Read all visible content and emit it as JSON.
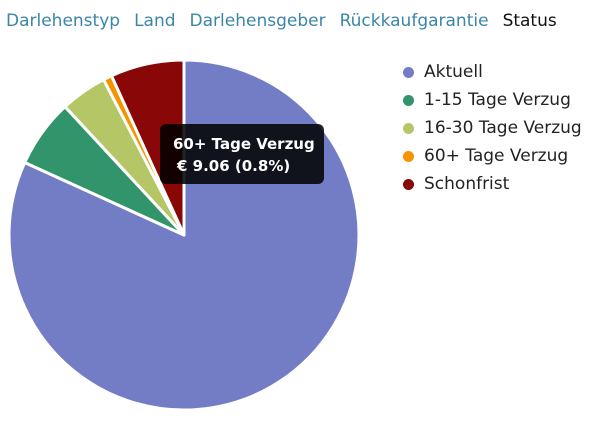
{
  "tabs": [
    {
      "label": "Darlehenstyp",
      "active": false
    },
    {
      "label": "Land",
      "active": false
    },
    {
      "label": "Darlehensgeber",
      "active": false
    },
    {
      "label": "Rückkaufgarantie",
      "active": false
    },
    {
      "label": "Status",
      "active": true
    }
  ],
  "chart_data": {
    "type": "pie",
    "slices": [
      {
        "label": "Aktuell",
        "percent": 81.8,
        "color": "#737dc6"
      },
      {
        "label": "1-15 Tage Verzug",
        "percent": 6.3,
        "color": "#31946a"
      },
      {
        "label": "16-30 Tage Verzug",
        "percent": 4.3,
        "color": "#b5c667"
      },
      {
        "label": "60+ Tage Verzug",
        "percent": 0.8,
        "color": "#f59300"
      },
      {
        "label": "Schonfrist",
        "percent": 6.8,
        "color": "#8a0707"
      }
    ],
    "legend_position": "right"
  },
  "tooltip": {
    "title": "60+ Tage Verzug",
    "value": "€ 9.06 (0.8%)"
  }
}
